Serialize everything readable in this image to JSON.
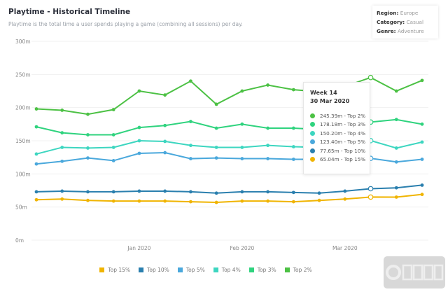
{
  "header": {
    "title": "Playtime - Historical Timeline",
    "subtitle": "Playtime is the total time a user spends playing a game (combining all sessions) per day."
  },
  "filters": [
    {
      "label": "Region:",
      "value": "Europe"
    },
    {
      "label": "Category:",
      "value": "Casual"
    },
    {
      "label": "Genre:",
      "value": "Adventure"
    }
  ],
  "tooltip": {
    "week": "Week 14",
    "date": "30 Mar 2020",
    "rows": [
      {
        "text": "245.39m - Top 2%",
        "color": "#4cc144"
      },
      {
        "text": "178.18m - Top 3%",
        "color": "#2fd37e"
      },
      {
        "text": "150.20m - Top 4%",
        "color": "#3dd6c0"
      },
      {
        "text": "123.40m - Top 5%",
        "color": "#4aa8dc"
      },
      {
        "text": "77.65m - Top 10%",
        "color": "#2a7fae"
      },
      {
        "text": "65.04m - Top 15%",
        "color": "#f0b400"
      }
    ]
  },
  "watermark": "白鲸出海",
  "chart_data": {
    "type": "line",
    "title": "Playtime - Historical Timeline",
    "ylim": [
      0,
      300
    ],
    "yticks": [
      "0m",
      "50m",
      "100m",
      "150m",
      "200m",
      "250m",
      "300m"
    ],
    "ytick_values": [
      0,
      50,
      100,
      150,
      200,
      250,
      300
    ],
    "xtick_labels": [
      {
        "label": "Jan 2020",
        "index": 4
      },
      {
        "label": "Feb 2020",
        "index": 8
      },
      {
        "label": "Mar 2020",
        "index": 12
      }
    ],
    "grid": true,
    "legend": "bottom",
    "highlight_index": 13,
    "series": [
      {
        "name": "Top 15%",
        "color": "#f0b400",
        "values": [
          61,
          62,
          60,
          59,
          59,
          59,
          58,
          57,
          59,
          59,
          58,
          60,
          62,
          65.04,
          65,
          69
        ]
      },
      {
        "name": "Top 10%",
        "color": "#2a7fae",
        "values": [
          73,
          74,
          73,
          73,
          74,
          74,
          73,
          71,
          73,
          73,
          72,
          71,
          74,
          77.65,
          79,
          83
        ]
      },
      {
        "name": "Top 5%",
        "color": "#4aa8dc",
        "values": [
          115,
          119,
          124,
          120,
          131,
          132,
          123,
          124,
          123,
          123,
          122,
          122,
          123,
          123.4,
          118,
          122
        ]
      },
      {
        "name": "Top 4%",
        "color": "#3dd6c0",
        "values": [
          130,
          140,
          139,
          140,
          150,
          149,
          143,
          140,
          140,
          143,
          141,
          140,
          145,
          150.2,
          139,
          148
        ]
      },
      {
        "name": "Top 3%",
        "color": "#2fd37e",
        "values": [
          171,
          162,
          159,
          159,
          170,
          173,
          179,
          169,
          175,
          169,
          169,
          167,
          172,
          178.18,
          182,
          175
        ]
      },
      {
        "name": "Top 2%",
        "color": "#4cc144",
        "values": [
          198,
          196,
          190,
          197,
          225,
          219,
          240,
          205,
          225,
          234,
          227,
          224,
          232,
          245.39,
          225,
          241
        ]
      }
    ]
  }
}
